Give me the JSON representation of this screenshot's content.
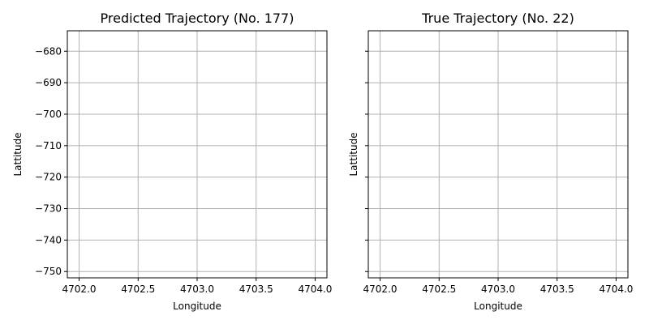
{
  "chart_data": [
    {
      "type": "line",
      "title": "Predicted Trajectory (No. 177)",
      "xlabel": "Longitude",
      "ylabel": "Lattitude",
      "xlim": [
        4701.9,
        4704.1
      ],
      "ylim": [
        -752,
        -673.5
      ],
      "xticks": [
        4702.0,
        4702.5,
        4703.0,
        4703.5,
        4704.0
      ],
      "xtick_labels": [
        "4702.0",
        "4702.5",
        "4703.0",
        "4703.5",
        "4704.0"
      ],
      "yticks": [
        -680,
        -690,
        -700,
        -710,
        -720,
        -730,
        -740,
        -750
      ],
      "ytick_labels": [
        "−680",
        "−690",
        "−700",
        "−710",
        "−720",
        "−730",
        "−740",
        "−750"
      ],
      "show_ytick_labels": true,
      "grid": true,
      "series": []
    },
    {
      "type": "line",
      "title": "True Trajectory (No. 22)",
      "xlabel": "Longitude",
      "ylabel": "Lattitude",
      "xlim": [
        4701.9,
        4704.1
      ],
      "ylim": [
        -752,
        -673.5
      ],
      "xticks": [
        4702.0,
        4702.5,
        4703.0,
        4703.5,
        4704.0
      ],
      "xtick_labels": [
        "4702.0",
        "4702.5",
        "4703.0",
        "4703.5",
        "4704.0"
      ],
      "yticks": [
        -680,
        -690,
        -700,
        -710,
        -720,
        -730,
        -740,
        -750
      ],
      "ytick_labels": [],
      "show_ytick_labels": false,
      "grid": true,
      "series": []
    }
  ]
}
